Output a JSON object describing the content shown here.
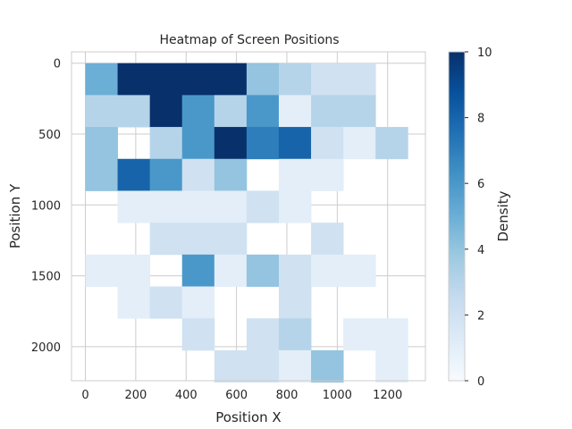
{
  "chart_data": {
    "type": "heatmap",
    "title": "Heatmap of Screen Positions",
    "xlabel": "Position X",
    "ylabel": "Position Y",
    "colorbar_label": "Density",
    "colormap": "Blues",
    "grid": true,
    "x_edges": [
      0,
      128,
      256,
      384,
      512,
      640,
      768,
      896,
      1024,
      1152,
      1280
    ],
    "y_edges": [
      0,
      225,
      450,
      675,
      900,
      1125,
      1350,
      1575,
      1800,
      2025,
      2250
    ],
    "xlim": [
      -55,
      1350
    ],
    "ylim_inverted": [
      2240,
      -80
    ],
    "x_ticks": [
      "0",
      "200",
      "400",
      "600",
      "800",
      "1000",
      "1200"
    ],
    "x_tick_values": [
      0,
      200,
      400,
      600,
      800,
      1000,
      1200
    ],
    "y_ticks": [
      "0",
      "500",
      "1000",
      "1500",
      "2000"
    ],
    "y_tick_values": [
      0,
      500,
      1000,
      1500,
      2000
    ],
    "vmin": 0,
    "vmax": 10,
    "colorbar_ticks": [
      "0",
      "2",
      "4",
      "6",
      "8",
      "10"
    ],
    "colorbar_tick_values": [
      0,
      2,
      4,
      6,
      8,
      10
    ],
    "values": [
      [
        5,
        10,
        10,
        10,
        10,
        4,
        3,
        2,
        2,
        0
      ],
      [
        3,
        3,
        10,
        6,
        3,
        6,
        1,
        3,
        3,
        0
      ],
      [
        4,
        0,
        3,
        6,
        10,
        7,
        8,
        2,
        1,
        3
      ],
      [
        4,
        8,
        6,
        2,
        4,
        0,
        1,
        1,
        0,
        0
      ],
      [
        0,
        1,
        1,
        1,
        1,
        2,
        1,
        0,
        0,
        0
      ],
      [
        0,
        0,
        2,
        2,
        2,
        0,
        0,
        2,
        0,
        0
      ],
      [
        1,
        1,
        0,
        6,
        1,
        4,
        2,
        1,
        1,
        0
      ],
      [
        0,
        1,
        2,
        1,
        0,
        0,
        2,
        0,
        0,
        0
      ],
      [
        0,
        0,
        0,
        2,
        0,
        2,
        3,
        0,
        1,
        1
      ],
      [
        0,
        0,
        0,
        0,
        2,
        2,
        1,
        4,
        0,
        1
      ]
    ]
  }
}
